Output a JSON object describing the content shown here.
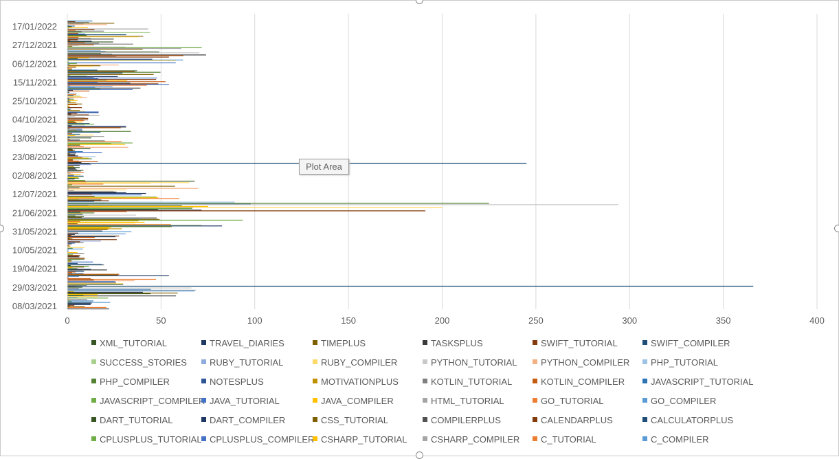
{
  "chart_data": {
    "type": "bar",
    "orientation": "horizontal",
    "category_ticks": [
      "17/01/2022",
      "27/12/2021",
      "06/12/2021",
      "15/11/2021",
      "25/10/2021",
      "04/10/2021",
      "13/09/2021",
      "23/08/2021",
      "02/08/2021",
      "12/07/2021",
      "21/06/2021",
      "31/05/2021",
      "10/05/2021",
      "19/04/2021",
      "29/03/2021",
      "08/03/2021"
    ],
    "x_ticks": [
      "0",
      "50",
      "100",
      "150",
      "200",
      "250",
      "300",
      "350",
      "400"
    ],
    "xlim": [
      0,
      400
    ],
    "grid": "vertical",
    "legend_placement": "bottom",
    "series": [
      {
        "name": "XML_TUTORIAL",
        "color": "#375623"
      },
      {
        "name": "TRAVEL_DIARIES",
        "color": "#203864"
      },
      {
        "name": "TIMEPLUS",
        "color": "#7f6000"
      },
      {
        "name": "TASKSPLUS",
        "color": "#3a3a3a"
      },
      {
        "name": "SWIFT_TUTORIAL",
        "color": "#843c0c"
      },
      {
        "name": "SWIFT_COMPILER",
        "color": "#1f4e79"
      },
      {
        "name": "SUCCESS_STORIES",
        "color": "#a9d18e"
      },
      {
        "name": "RUBY_TUTORIAL",
        "color": "#8faadc"
      },
      {
        "name": "RUBY_COMPILER",
        "color": "#ffd966"
      },
      {
        "name": "PYTHON_TUTORIAL",
        "color": "#c9c9c9"
      },
      {
        "name": "PYTHON_COMPILER",
        "color": "#f4b183"
      },
      {
        "name": "PHP_TUTORIAL",
        "color": "#9dc3e6"
      },
      {
        "name": "PHP_COMPILER",
        "color": "#548235"
      },
      {
        "name": "NOTESPLUS",
        "color": "#2f5597"
      },
      {
        "name": "MOTIVATIONPLUS",
        "color": "#bf9000"
      },
      {
        "name": "KOTLIN_TUTORIAL",
        "color": "#7f7f7f"
      },
      {
        "name": "KOTLIN_COMPILER",
        "color": "#c55a11"
      },
      {
        "name": "JAVASCRIPT_TUTORIAL",
        "color": "#2e75b6"
      },
      {
        "name": "JAVASCRIPT_COMPILER",
        "color": "#70ad47"
      },
      {
        "name": "JAVA_TUTORIAL",
        "color": "#4472c4"
      },
      {
        "name": "JAVA_COMPILER",
        "color": "#ffc000"
      },
      {
        "name": "HTML_TUTORIAL",
        "color": "#a5a5a5"
      },
      {
        "name": "GO_TUTORIAL",
        "color": "#ed7d31"
      },
      {
        "name": "GO_COMPILER",
        "color": "#5b9bd5"
      },
      {
        "name": "DART_TUTORIAL",
        "color": "#375623"
      },
      {
        "name": "DART_COMPILER",
        "color": "#203864"
      },
      {
        "name": "CSS_TUTORIAL",
        "color": "#7f6000"
      },
      {
        "name": "COMPILERPLUS",
        "color": "#525252"
      },
      {
        "name": "CALENDARPLUS",
        "color": "#843c0c"
      },
      {
        "name": "CALCULATORPLUS",
        "color": "#1f4e79"
      },
      {
        "name": "CPLUSPLUS_TUTORIAL",
        "color": "#70ad47"
      },
      {
        "name": "CPLUSPLUS_COMPILER",
        "color": "#4472c4"
      },
      {
        "name": "CSHARP_TUTORIAL",
        "color": "#ffc000"
      },
      {
        "name": "CSHARP_COMPILER",
        "color": "#a5a5a5"
      },
      {
        "name": "C_TUTORIAL",
        "color": "#ed7d31"
      },
      {
        "name": "C_COMPILER",
        "color": "#5b9bd5"
      }
    ],
    "visible_peaks": [
      {
        "date": "29/03/2021",
        "series": "SWIFT_COMPILER",
        "value": 366
      },
      {
        "date": "23/08/2021",
        "series": "SWIFT_COMPILER",
        "value": 245
      },
      {
        "date": "12/07/2021",
        "series": "PYTHON_TUTORIAL",
        "value": 294
      },
      {
        "date": "12/07/2021",
        "series": "PHP_COMPILER",
        "value": 225
      },
      {
        "date": "12/07/2021",
        "series": "RUBY_COMPILER",
        "value": 200
      },
      {
        "date": "12/07/2021",
        "series": "SWIFT_TUTORIAL",
        "value": 191
      }
    ]
  },
  "ui": {
    "plot_area_tooltip": "Plot Area"
  }
}
